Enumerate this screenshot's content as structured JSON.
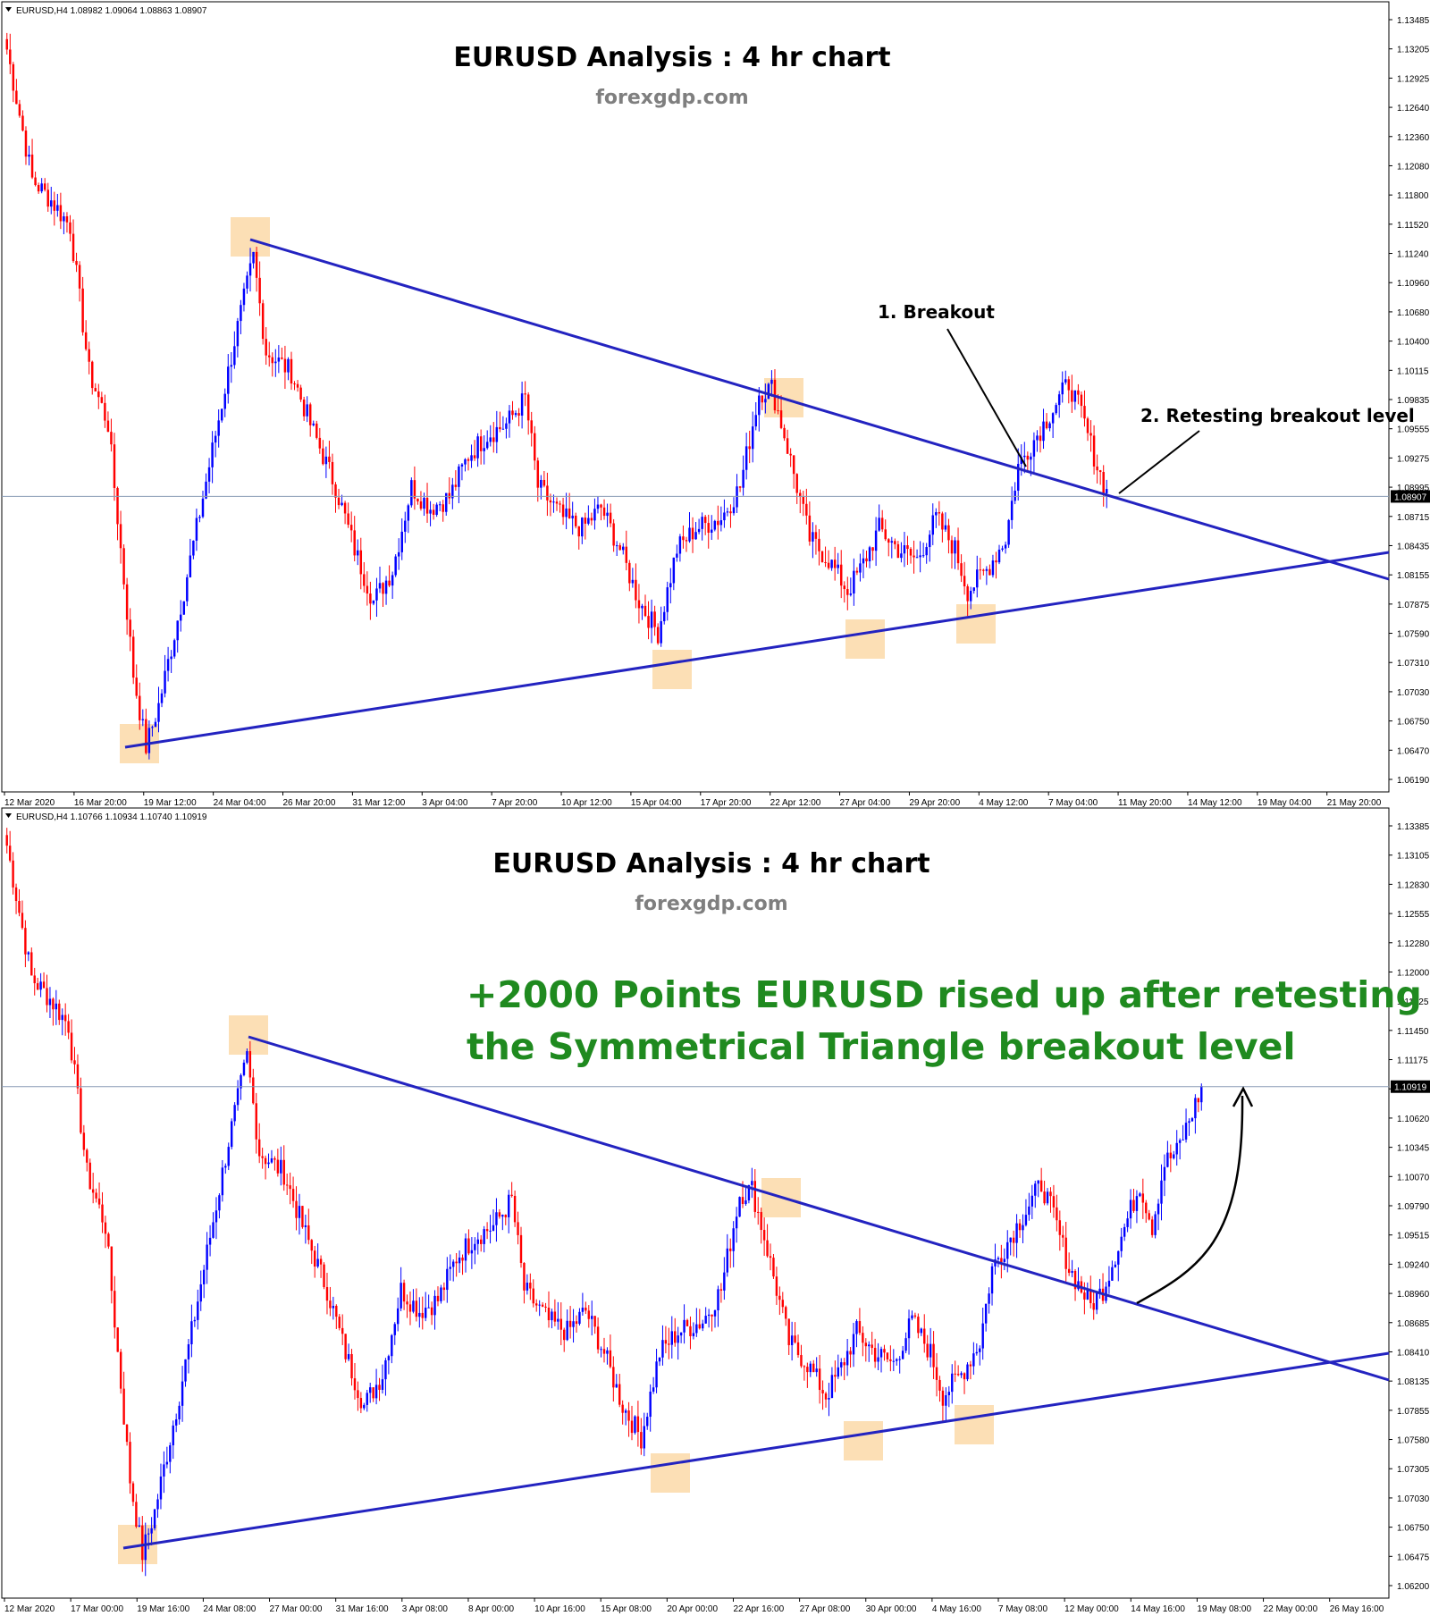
{
  "chart_data": [
    {
      "type": "candlestick",
      "header": "EURUSD,H4  1.08982 1.09064 1.08863 1.08907",
      "title": "EURUSD Analysis : 4 hr chart",
      "subtitle": "forexgdp.com",
      "current_price": "1.08907",
      "y_ticks": [
        "1.13485",
        "1.13205",
        "1.12925",
        "1.12640",
        "1.12360",
        "1.12080",
        "1.11800",
        "1.11520",
        "1.11240",
        "1.10960",
        "1.10680",
        "1.10400",
        "1.10115",
        "1.09835",
        "1.09555",
        "1.09275",
        "1.08995",
        "1.08715",
        "1.08435",
        "1.08155",
        "1.07875",
        "1.07590",
        "1.07310",
        "1.07030",
        "1.06750",
        "1.06470",
        "1.06190"
      ],
      "x_ticks": [
        "12 Mar 2020",
        "16 Mar 20:00",
        "19 Mar 12:00",
        "24 Mar 04:00",
        "26 Mar 20:00",
        "31 Mar 12:00",
        "3 Apr 04:00",
        "7 Apr 20:00",
        "10 Apr 12:00",
        "15 Apr 04:00",
        "17 Apr 20:00",
        "22 Apr 12:00",
        "27 Apr 04:00",
        "29 Apr 20:00",
        "4 May 12:00",
        "7 May 04:00",
        "11 May 20:00",
        "14 May 12:00",
        "19 May 04:00",
        "21 May 20:00"
      ],
      "annotations": [
        "1. Breakout",
        "2. Retesting breakout level"
      ],
      "pattern": "symmetrical-triangle"
    },
    {
      "type": "candlestick",
      "header": "EURUSD,H4  1.10766 1.10934 1.10740 1.10919",
      "title": "EURUSD Analysis : 4 hr chart",
      "subtitle": "forexgdp.com",
      "current_price": "1.10919",
      "y_ticks": [
        "1.13385",
        "1.13105",
        "1.12830",
        "1.12555",
        "1.12280",
        "1.12000",
        "1.11725",
        "1.11450",
        "1.11175",
        "1.10900",
        "1.10620",
        "1.10345",
        "1.10070",
        "1.09790",
        "1.09515",
        "1.09240",
        "1.08960",
        "1.08685",
        "1.08410",
        "1.08135",
        "1.07855",
        "1.07580",
        "1.07305",
        "1.07030",
        "1.06750",
        "1.06475",
        "1.06200"
      ],
      "x_ticks": [
        "12 Mar 2020",
        "17 Mar 00:00",
        "19 Mar 16:00",
        "24 Mar 08:00",
        "27 Mar 00:00",
        "31 Mar 16:00",
        "3 Apr 08:00",
        "8 Apr 00:00",
        "10 Apr 16:00",
        "15 Apr 08:00",
        "20 Apr 00:00",
        "22 Apr 16:00",
        "27 Apr 08:00",
        "30 Apr 00:00",
        "4 May 16:00",
        "7 May 08:00",
        "12 May 00:00",
        "14 May 16:00",
        "19 May 08:00",
        "22 May 00:00",
        "26 May 16:00"
      ],
      "annotations": [
        "+2000 Points EURUSD rised up after retesting",
        "the Symmetrical Triangle breakout level"
      ],
      "pattern": "symmetrical-triangle"
    }
  ],
  "colors": {
    "bull": "#0000ff",
    "bear": "#ff0000",
    "trendline": "#2323c0",
    "highlight": "#fcd9a8",
    "green_text": "#1f8a1f"
  }
}
